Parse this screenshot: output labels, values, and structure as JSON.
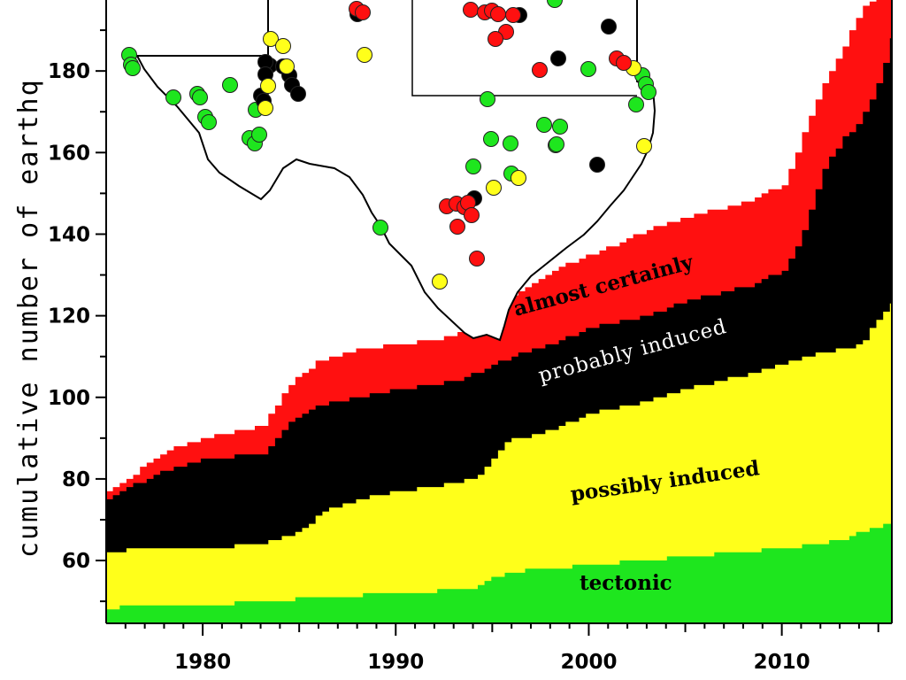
{
  "chart_data": {
    "type": "area",
    "stacked": true,
    "ylabel": "cumulative number of earthq",
    "xlim": [
      1975.0,
      2015.7
    ],
    "ylim": [
      44.6,
      197.4
    ],
    "xticks": [
      1980,
      1990,
      2000,
      2010
    ],
    "yticks": [
      60,
      80,
      100,
      120,
      140,
      160,
      180
    ],
    "series": [
      {
        "name": "tectonic",
        "color": "#1ee61e",
        "x": [
          1975,
          1976,
          1980,
          1983,
          1986,
          1990,
          1994,
          1995.5,
          2000,
          2005,
          2010,
          2013,
          2014.5,
          2015.7
        ],
        "y": [
          48,
          49,
          49,
          50,
          51,
          52,
          53,
          57,
          59,
          61,
          63,
          65,
          68,
          69
        ]
      },
      {
        "name": "possibly induced",
        "color": "#ffff1a",
        "x": [
          1975,
          1977,
          1980,
          1983,
          1985,
          1986,
          1988,
          1990,
          1993,
          1994,
          1995,
          1995.5,
          1998,
          2000,
          2002,
          2005,
          2010,
          2012,
          2014,
          2015,
          2015.7
        ],
        "y": [
          62,
          63,
          63,
          64,
          67,
          72,
          75,
          77,
          79,
          80,
          85,
          89,
          92,
          96,
          98,
          102,
          108,
          111,
          113,
          120,
          123
        ]
      },
      {
        "name": "probably induced",
        "color": "#000000",
        "x": [
          1975,
          1976,
          1978,
          1980,
          1983,
          1984,
          1985,
          1986,
          1988,
          1990,
          1993,
          1994,
          1996,
          1998,
          2000,
          2003,
          2005,
          2008,
          2010,
          2011,
          2012,
          2013,
          2014,
          2015,
          2015.7
        ],
        "y": [
          75,
          78,
          82,
          85,
          86,
          92,
          96,
          98,
          100,
          102,
          104,
          106,
          110,
          113,
          117,
          120,
          124,
          127,
          131,
          140,
          155,
          163,
          168,
          178,
          190
        ]
      },
      {
        "name": "almost certainly",
        "color": "#ff1010",
        "x": [
          1975,
          1976,
          1978,
          1980,
          1983,
          1984,
          1985,
          1986,
          1988,
          1990,
          1993,
          1994,
          1996,
          1998,
          2000,
          2003,
          2005,
          2008,
          2010,
          2011,
          2012,
          2013,
          2014,
          2015,
          2015.7
        ],
        "y": [
          77,
          80,
          87,
          90,
          93,
          100,
          106,
          109,
          112,
          113,
          115,
          118,
          125,
          131,
          135,
          141,
          144,
          148,
          152,
          164,
          176,
          185,
          195,
          198,
          199
        ]
      }
    ],
    "annotations": [
      "almost certainly",
      "probably induced",
      "possibly induced",
      "tectonic"
    ],
    "inset_map": {
      "region": "Texas",
      "points": [
        {
          "c": "g",
          "lon": -106.6,
          "lat": 31.9
        },
        {
          "c": "g",
          "lon": -106.5,
          "lat": 31.75
        },
        {
          "c": "g",
          "lon": -106.4,
          "lat": 31.7
        },
        {
          "c": "g",
          "lon": -105.0,
          "lat": 30.8
        },
        {
          "c": "g",
          "lon": -104.5,
          "lat": 30.9
        },
        {
          "c": "g",
          "lon": -104.0,
          "lat": 30.5
        },
        {
          "c": "g",
          "lon": -103.7,
          "lat": 30.6
        },
        {
          "c": "g",
          "lon": -103.9,
          "lat": 30.25
        },
        {
          "c": "g",
          "lon": -103.6,
          "lat": 30.15
        },
        {
          "c": "g",
          "lon": -102.3,
          "lat": 29.6
        },
        {
          "c": "g",
          "lon": -102.2,
          "lat": 29.45
        },
        {
          "c": "g",
          "lon": -102.0,
          "lat": 29.5
        },
        {
          "c": "g",
          "lon": -102.1,
          "lat": 29.3
        },
        {
          "c": "g",
          "lon": -98.3,
          "lat": 28.5
        },
        {
          "c": "b",
          "lon": -102.0,
          "lat": 31.7
        },
        {
          "c": "b",
          "lon": -101.9,
          "lat": 31.9
        },
        {
          "c": "b",
          "lon": -102.2,
          "lat": 31.6
        },
        {
          "c": "b",
          "lon": -101.5,
          "lat": 31.8
        },
        {
          "c": "b",
          "lon": -101.3,
          "lat": 31.6
        },
        {
          "c": "b",
          "lon": -101.2,
          "lat": 31.4
        },
        {
          "c": "b",
          "lon": -101.0,
          "lat": 31.2
        },
        {
          "c": "b",
          "lon": -102.3,
          "lat": 31.1
        },
        {
          "c": "b",
          "lon": -102.2,
          "lat": 30.95
        },
        {
          "c": "y",
          "lon": -101.8,
          "lat": 32.4
        },
        {
          "c": "y",
          "lon": -101.4,
          "lat": 32.25
        },
        {
          "c": "y",
          "lon": -101.5,
          "lat": 31.55
        },
        {
          "c": "y",
          "lon": -102.0,
          "lat": 31.25
        },
        {
          "c": "y",
          "lon": -102.05,
          "lat": 30.8
        },
        {
          "c": "r",
          "lon": -99.3,
          "lat": 33.95
        },
        {
          "c": "r",
          "lon": -99.2,
          "lat": 34.0
        },
        {
          "c": "b",
          "lon": -99.35,
          "lat": 33.8
        },
        {
          "c": "y",
          "lon": -98.9,
          "lat": 32.1
        }
      ]
    }
  },
  "colors": {
    "tectonic": "#1ee61e",
    "possibly": "#ffff1a",
    "probably": "#000000",
    "almost": "#ff1010"
  }
}
